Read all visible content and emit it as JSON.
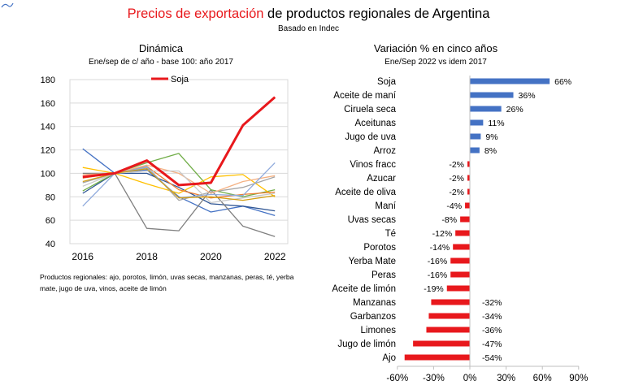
{
  "header": {
    "title_highlight": "Precios de exportación",
    "title_rest": "de productos regionales de Argentina",
    "subtitle": "Basado en Indec"
  },
  "note": "Productos regionales: ajo, porotos, limón, uvas secas, manzanas, peras, té, yerba mate, jugo de uva, vinos, aceite de limón",
  "colors": {
    "accent_red": "#e8181c",
    "bar_blue": "#4472c4",
    "bar_red": "#e8181c",
    "grid": "#d9d9d9"
  },
  "chart_data": [
    {
      "type": "line",
      "title": "Dinámica",
      "subtitle": "Ene/sep de c/ año  - base 100: año 2017",
      "x": [
        2016,
        2017,
        2018,
        2019,
        2020,
        2021,
        2022
      ],
      "xticks": [
        "2016",
        "2018",
        "2020",
        "2022"
      ],
      "yticks": [
        "180",
        "160",
        "140",
        "120",
        "100",
        "80",
        "60",
        "40"
      ],
      "ylim": [
        40,
        180
      ],
      "xlim": [
        2015.6,
        2022.4
      ],
      "legend": "Soja",
      "series": [
        {
          "name": "Soja",
          "color": "#e8181c",
          "highlight": true,
          "values": [
            97,
            100,
            111,
            90,
            92,
            141,
            165
          ]
        },
        {
          "name": "s1",
          "color": "#4472c4",
          "values": [
            121,
            100,
            103,
            80,
            67,
            72,
            64
          ]
        },
        {
          "name": "s2",
          "color": "#2e5594",
          "values": [
            83,
            100,
            100,
            88,
            74,
            72,
            68
          ]
        },
        {
          "name": "s3",
          "color": "#7f7f7f",
          "values": [
            100,
            100,
            53,
            51,
            86,
            55,
            46
          ]
        },
        {
          "name": "s4",
          "color": "#70ad47",
          "values": [
            85,
            100,
            109,
            117,
            86,
            80,
            86
          ]
        },
        {
          "name": "s5",
          "color": "#ffc000",
          "values": [
            105,
            100,
            91,
            83,
            97,
            99,
            80
          ]
        },
        {
          "name": "s6",
          "color": "#ed7d31",
          "values": [
            96,
            100,
            106,
            86,
            79,
            82,
            84
          ]
        },
        {
          "name": "s7",
          "color": "#a5a5a5",
          "values": [
            92,
            100,
            106,
            77,
            84,
            88,
            97
          ]
        },
        {
          "name": "s8",
          "color": "#f4b183",
          "values": [
            99,
            100,
            107,
            100,
            83,
            93,
            98
          ]
        },
        {
          "name": "s9",
          "color": "#8faadc",
          "values": [
            72,
            100,
            105,
            79,
            82,
            81,
            109
          ]
        },
        {
          "name": "s10",
          "color": "#c9c9c9",
          "values": [
            89,
            100,
            102,
            102,
            75,
            79,
            83
          ]
        },
        {
          "name": "s11",
          "color": "#d4a017",
          "values": [
            93,
            100,
            104,
            79,
            80,
            77,
            81
          ]
        }
      ]
    },
    {
      "type": "bar",
      "orientation": "horizontal",
      "title": "Variación % en cinco años",
      "subtitle": "Ene/Sep 2022 vs idem 2017",
      "categories": [
        "Soja",
        "Aceite de maní",
        "Ciruela seca",
        "Aceitunas",
        "Jugo de uva",
        "Arroz",
        "Vinos fracc",
        "Azucar",
        "Aceite de oliva",
        "Maní",
        "Uvas secas",
        "Té",
        "Porotos",
        "Yerba Mate",
        "Peras",
        "Aceite de limón",
        "Manzanas",
        "Garbanzos",
        "Limones",
        "Jugo de limón",
        "Ajo"
      ],
      "values": [
        66,
        36,
        26,
        11,
        9,
        8,
        -2,
        -2,
        -2,
        -4,
        -8,
        -12,
        -14,
        -16,
        -16,
        -19,
        -32,
        -34,
        -36,
        -47,
        -54
      ],
      "labels": [
        "66%",
        "36%",
        "26%",
        "11%",
        "9%",
        "8%",
        "-2%",
        "-2%",
        "-2%",
        "-4%",
        "-8%",
        "-12%",
        "-14%",
        "-16%",
        "-16%",
        "-19%",
        "-32%",
        "-34%",
        "-36%",
        "-47%",
        "-54%"
      ],
      "xlim": [
        -60,
        90
      ],
      "xticks": [
        "-60%",
        "-30%",
        "0%",
        "30%",
        "60%",
        "90%"
      ]
    }
  ]
}
